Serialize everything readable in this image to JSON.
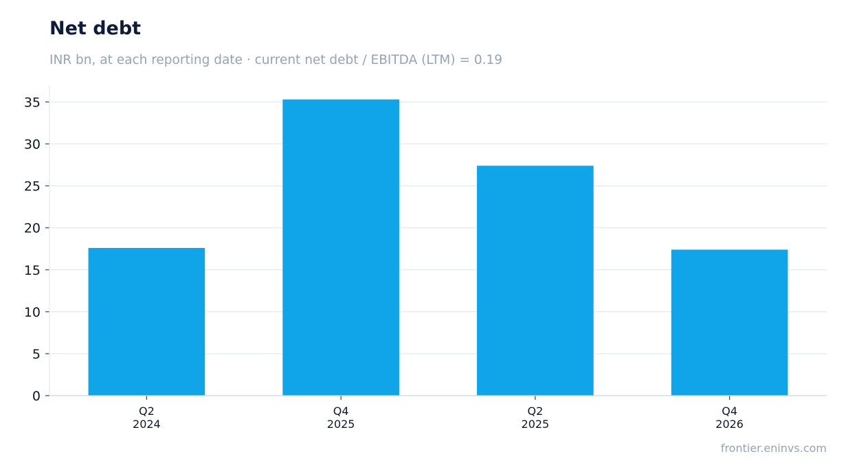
{
  "chart_data": {
    "type": "bar",
    "title": "Net debt",
    "subtitle": "INR bn, at each reporting date · current net debt / EBITDA (LTM) = 0.19",
    "categories": [
      [
        "Q2",
        "2024"
      ],
      [
        "Q4",
        "2025"
      ],
      [
        "Q2",
        "2025"
      ],
      [
        "Q4",
        "2026"
      ]
    ],
    "values": [
      17.6,
      35.3,
      27.4,
      17.4
    ],
    "ylim": [
      0,
      37
    ],
    "yticks": [
      0,
      5,
      10,
      15,
      20,
      25,
      30,
      35
    ],
    "xlabel": "",
    "ylabel": "",
    "grid": true,
    "bar_color": "#10a5e8"
  },
  "footer": {
    "source": "frontier.eninvs.com"
  }
}
